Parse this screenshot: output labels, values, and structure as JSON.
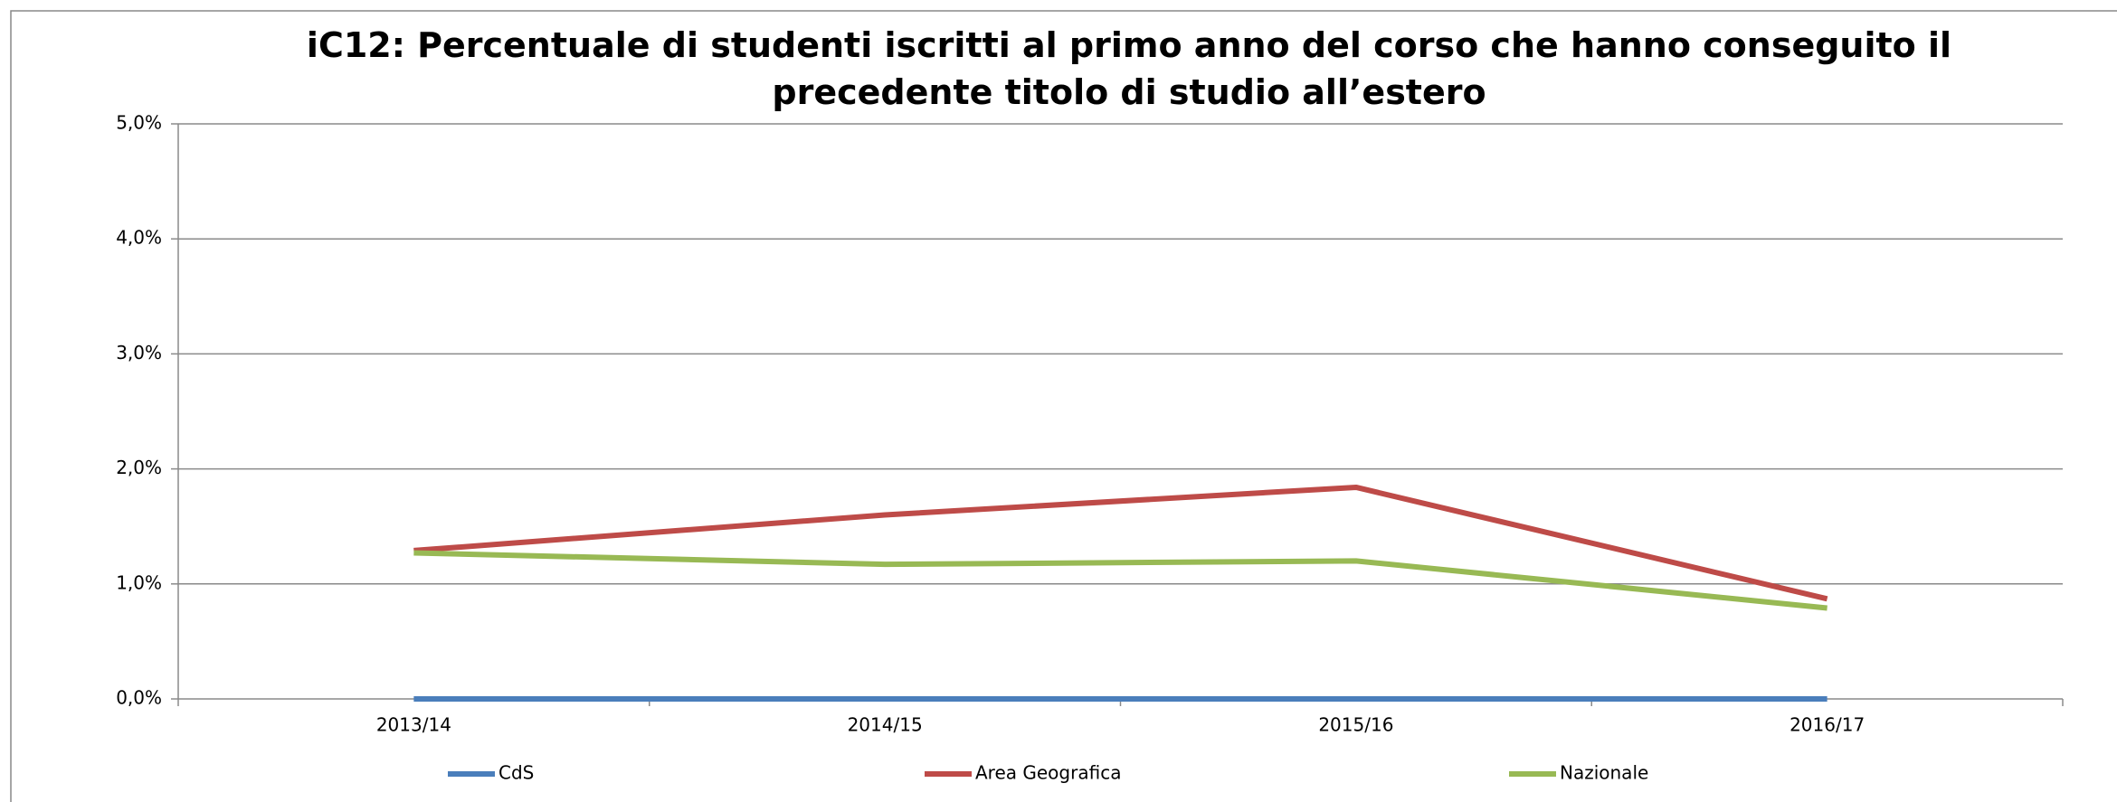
{
  "chart_data": {
    "type": "line",
    "title": "iC12: Percentuale di studenti iscritti al primo anno del corso che hanno conseguito il precedente titolo di studio all’estero",
    "categories": [
      "2013/14",
      "2014/15",
      "2015/16",
      "2016/17"
    ],
    "series": [
      {
        "name": "CdS",
        "color": "#4a7ebb",
        "values": [
          0,
          0,
          0,
          0
        ]
      },
      {
        "name": "Area Geografica",
        "color": "#be4b48",
        "values": [
          1.29,
          1.6,
          1.84,
          0.87
        ]
      },
      {
        "name": "Nazionale",
        "color": "#98b954",
        "values": [
          1.27,
          1.17,
          1.2,
          0.79
        ]
      }
    ],
    "ylim": [
      0,
      5
    ],
    "yticks": [
      {
        "value": 0,
        "label": "0,0%"
      },
      {
        "value": 1,
        "label": "1,0%"
      },
      {
        "value": 2,
        "label": "2,0%"
      },
      {
        "value": 3,
        "label": "3,0%"
      },
      {
        "value": 4,
        "label": "4,0%"
      },
      {
        "value": 5,
        "label": "5,0%"
      }
    ],
    "grid": true,
    "legend": "bottom"
  }
}
